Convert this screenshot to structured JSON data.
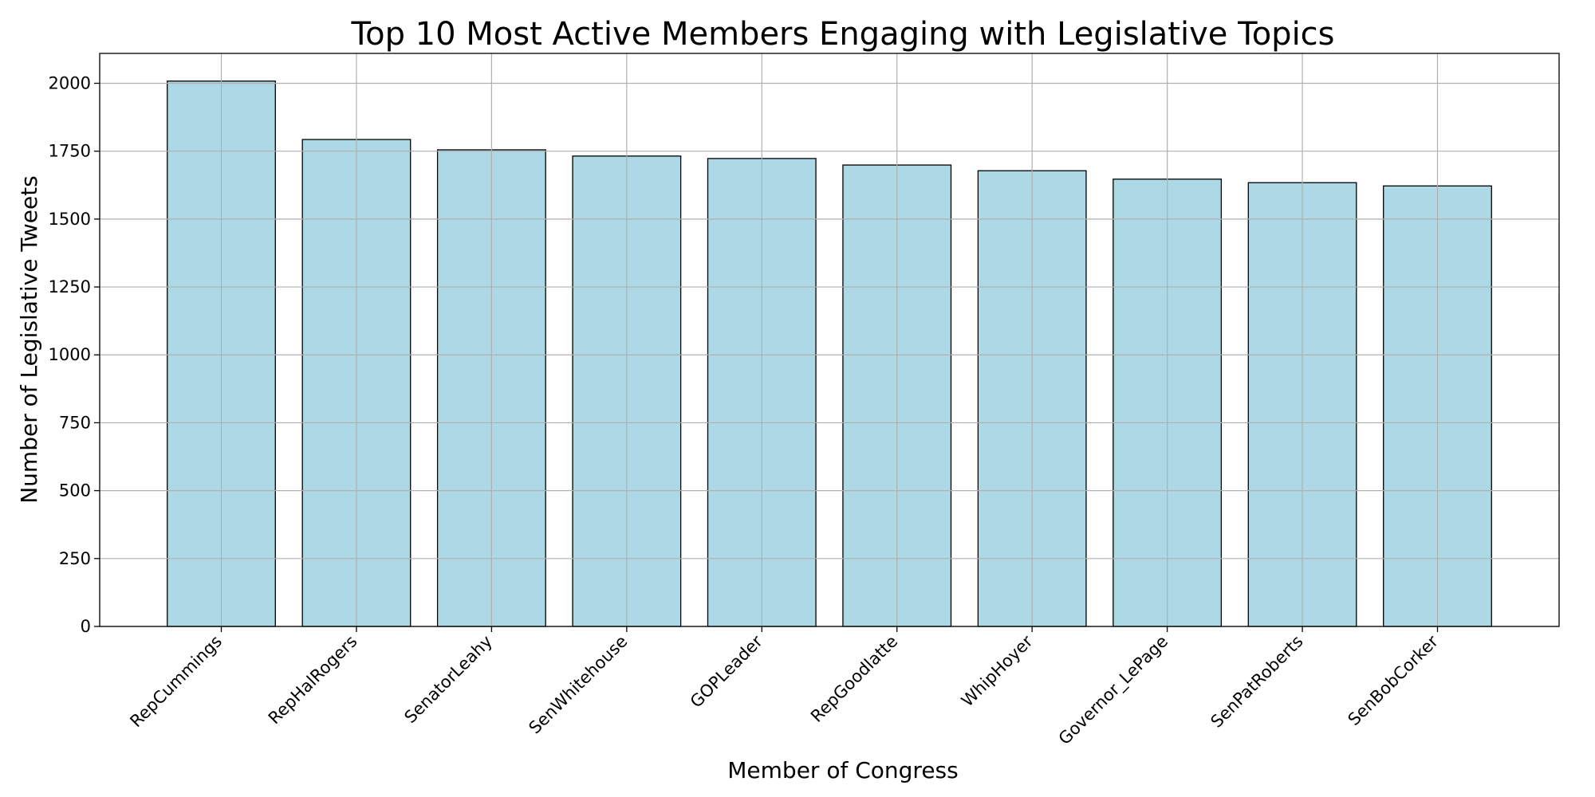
{
  "chart_data": {
    "type": "bar",
    "title": "Top 10 Most Active Members Engaging with Legislative Topics",
    "xlabel": "Member of Congress",
    "ylabel": "Number of Legislative Tweets",
    "categories": [
      "RepCummings",
      "RepHalRogers",
      "SenatorLeahy",
      "SenWhitehouse",
      "GOPLeader",
      "RepGoodlatte",
      "WhipHoyer",
      "Governor_LePage",
      "SenPatRoberts",
      "SenBobCorker"
    ],
    "values": [
      2008,
      1793,
      1755,
      1732,
      1723,
      1699,
      1678,
      1647,
      1634,
      1622
    ],
    "ylim": [
      0,
      2110
    ],
    "yticks": [
      0,
      250,
      500,
      750,
      1000,
      1250,
      1500,
      1750,
      2000
    ],
    "grid": true,
    "bar_color": "#add8e6",
    "edge_color": "#000000"
  }
}
